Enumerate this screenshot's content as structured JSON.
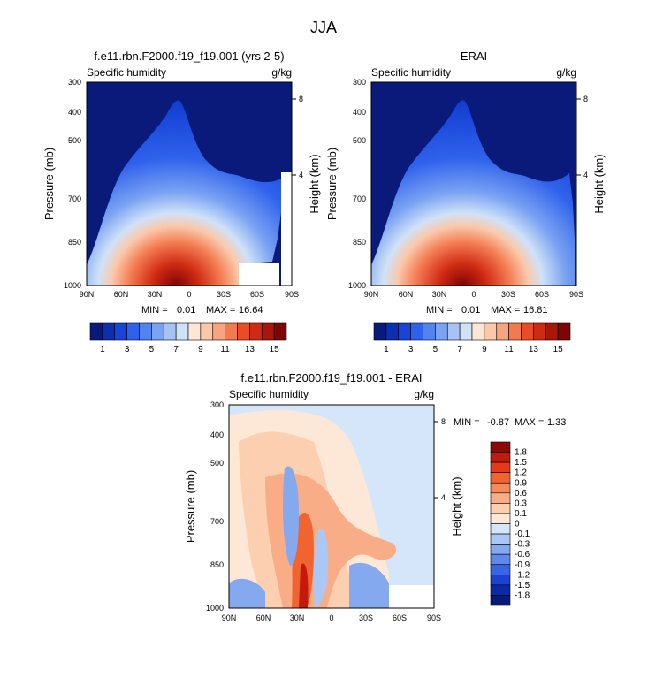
{
  "figure": {
    "title": "JJA"
  },
  "chart_data": [
    {
      "type": "heatmap",
      "title": "f.e11.rbn.F2000.f19_f19.001 (yrs 2-5)",
      "left_label": "Specific humidity",
      "right_label": "g/kg",
      "ylabel": "Pressure (mb)",
      "ylabel_right": "Height (km)",
      "x_ticks": [
        "90N",
        "60N",
        "30N",
        "0",
        "30S",
        "60S",
        "90S"
      ],
      "y_ticks": [
        "300",
        "400",
        "500",
        "700",
        "850",
        "1000"
      ],
      "y_ticks_right": [
        "8",
        "4"
      ],
      "stats": {
        "min_label": "MIN =",
        "min": "0.01",
        "max_label": "MAX =",
        "max": "16.64"
      },
      "colorbar": {
        "orientation": "horizontal",
        "labels": [
          "1",
          "3",
          "5",
          "7",
          "9",
          "11",
          "13",
          "15"
        ],
        "colors": [
          "#0a1a7a",
          "#0c2eb0",
          "#1845d8",
          "#2f62ec",
          "#5284f0",
          "#7aa3f2",
          "#a6c3f4",
          "#d0e2f8",
          "#fde6d6",
          "#fbc8aa",
          "#f8a47e",
          "#f37a50",
          "#ea4d25",
          "#cf2a12",
          "#a9160a",
          "#7d0505"
        ]
      },
      "peak": {
        "lat": 10,
        "value": 16.64
      }
    },
    {
      "type": "heatmap",
      "title": "ERAI",
      "left_label": "Specific humidity",
      "right_label": "g/kg",
      "ylabel": "Pressure (mb)",
      "ylabel_right": "Height (km)",
      "x_ticks": [
        "90N",
        "60N",
        "30N",
        "0",
        "30S",
        "60S",
        "90S"
      ],
      "y_ticks": [
        "300",
        "400",
        "500",
        "700",
        "850",
        "1000"
      ],
      "y_ticks_right": [
        "8",
        "4"
      ],
      "stats": {
        "min_label": "MIN =",
        "min": "0.01",
        "max_label": "MAX =",
        "max": "16.81"
      },
      "colorbar": {
        "orientation": "horizontal",
        "labels": [
          "1",
          "3",
          "5",
          "7",
          "9",
          "11",
          "13",
          "15"
        ],
        "colors": [
          "#0a1a7a",
          "#0c2eb0",
          "#1845d8",
          "#2f62ec",
          "#5284f0",
          "#7aa3f2",
          "#a6c3f4",
          "#d0e2f8",
          "#fde6d6",
          "#fbc8aa",
          "#f8a47e",
          "#f37a50",
          "#ea4d25",
          "#cf2a12",
          "#a9160a",
          "#7d0505"
        ]
      },
      "peak": {
        "lat": 10,
        "value": 16.81
      }
    },
    {
      "type": "heatmap",
      "title": "f.e11.rbn.F2000.f19_f19.001 - ERAI",
      "left_label": "Specific humidity",
      "right_label": "g/kg",
      "ylabel": "Pressure (mb)",
      "ylabel_right": "Height (km)",
      "x_ticks": [
        "90N",
        "60N",
        "30N",
        "0",
        "30S",
        "60S",
        "90S"
      ],
      "y_ticks": [
        "300",
        "400",
        "500",
        "700",
        "850",
        "1000"
      ],
      "y_ticks_right": [
        "8",
        "4"
      ],
      "stats": {
        "min_label": "MIN =",
        "min": "-0.87",
        "max_label": "MAX =",
        "max": "1.33"
      },
      "colorbar": {
        "orientation": "vertical",
        "labels": [
          "1.8",
          "1.5",
          "1.2",
          "0.9",
          "0.6",
          "0.3",
          "0.1",
          "0",
          "-0.1",
          "-0.3",
          "-0.6",
          "-0.9",
          "-1.2",
          "-1.5",
          "-1.8"
        ],
        "colors": [
          "#8b0a05",
          "#c21a0c",
          "#e53a1a",
          "#f2642f",
          "#f58a5a",
          "#f8ad86",
          "#fbcfb0",
          "#fde7d7",
          "#d6e6fa",
          "#aac8f3",
          "#85a9ee",
          "#5f88ea",
          "#3a65e2",
          "#1c43cf",
          "#0c2aa6",
          "#071a7a"
        ]
      }
    }
  ]
}
